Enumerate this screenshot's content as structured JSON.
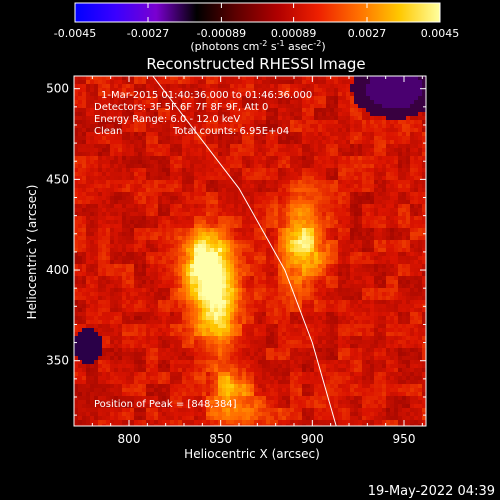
{
  "chart_data": {
    "type": "heatmap",
    "title": "Reconstructed RHESSI Image",
    "xlabel": "Heliocentric X (arcsec)",
    "ylabel": "Heliocentric Y (arcsec)",
    "xlim": [
      770,
      962
    ],
    "ylim": [
      314,
      507
    ],
    "x_ticks": [
      "800",
      "850",
      "900",
      "950"
    ],
    "x_tick_values": [
      800,
      850,
      900,
      950
    ],
    "y_ticks": [
      "350",
      "400",
      "450",
      "500"
    ],
    "y_tick_values": [
      350,
      400,
      450,
      500
    ],
    "colorbar": {
      "ticks": [
        "-0.0045",
        "-0.0027",
        "-0.00089",
        "0.00089",
        "0.0027",
        "0.0045"
      ],
      "tick_values": [
        -0.0045,
        -0.0027,
        -0.00089,
        0.00089,
        0.0027,
        0.0045
      ],
      "range": [
        -0.0045,
        0.0045
      ],
      "unit_base": "(photons cm",
      "unit_exp1": "-2",
      "unit_mid": " s",
      "unit_exp2": "-1",
      "unit_mid2": " asec",
      "unit_exp3": "-2",
      "unit_end": ")",
      "colors": [
        "#0000ff",
        "#3a00ff",
        "#7a00d0",
        "#000000",
        "#600000",
        "#b00000",
        "#ee2000",
        "#ff7000",
        "#ffc800",
        "#ffffa0"
      ]
    },
    "annotations": [
      "1-Mar-2015 01:40:36.000 to 01:46:36.000",
      "Detectors: 3F 5F 6F 7F 8F 9F, Att 0",
      "Energy Range: 6.0 - 12.0 keV",
      "Clean",
      "Total counts: 6.95E+04"
    ],
    "peak_label": "Position of Peak = [848,384]",
    "peak": [
      848,
      384
    ],
    "sources": [
      {
        "x": 848,
        "y": 384,
        "sx": 9,
        "sy": 20,
        "amp": 1.0
      },
      {
        "x": 840,
        "y": 404,
        "sx": 9,
        "sy": 14,
        "amp": 0.75
      },
      {
        "x": 895,
        "y": 415,
        "sx": 9,
        "sy": 17,
        "amp": 0.8
      },
      {
        "x": 855,
        "y": 337,
        "sx": 7,
        "sy": 6,
        "amp": 0.55
      },
      {
        "x": 860,
        "y": 322,
        "sx": 12,
        "sy": 8,
        "amp": 0.5
      }
    ],
    "limb": [
      [
        813,
        507
      ],
      [
        860,
        445
      ],
      [
        885,
        400
      ],
      [
        900,
        360
      ],
      [
        913,
        314
      ]
    ]
  },
  "footer": {
    "timestamp": "19-May-2022 04:39"
  }
}
